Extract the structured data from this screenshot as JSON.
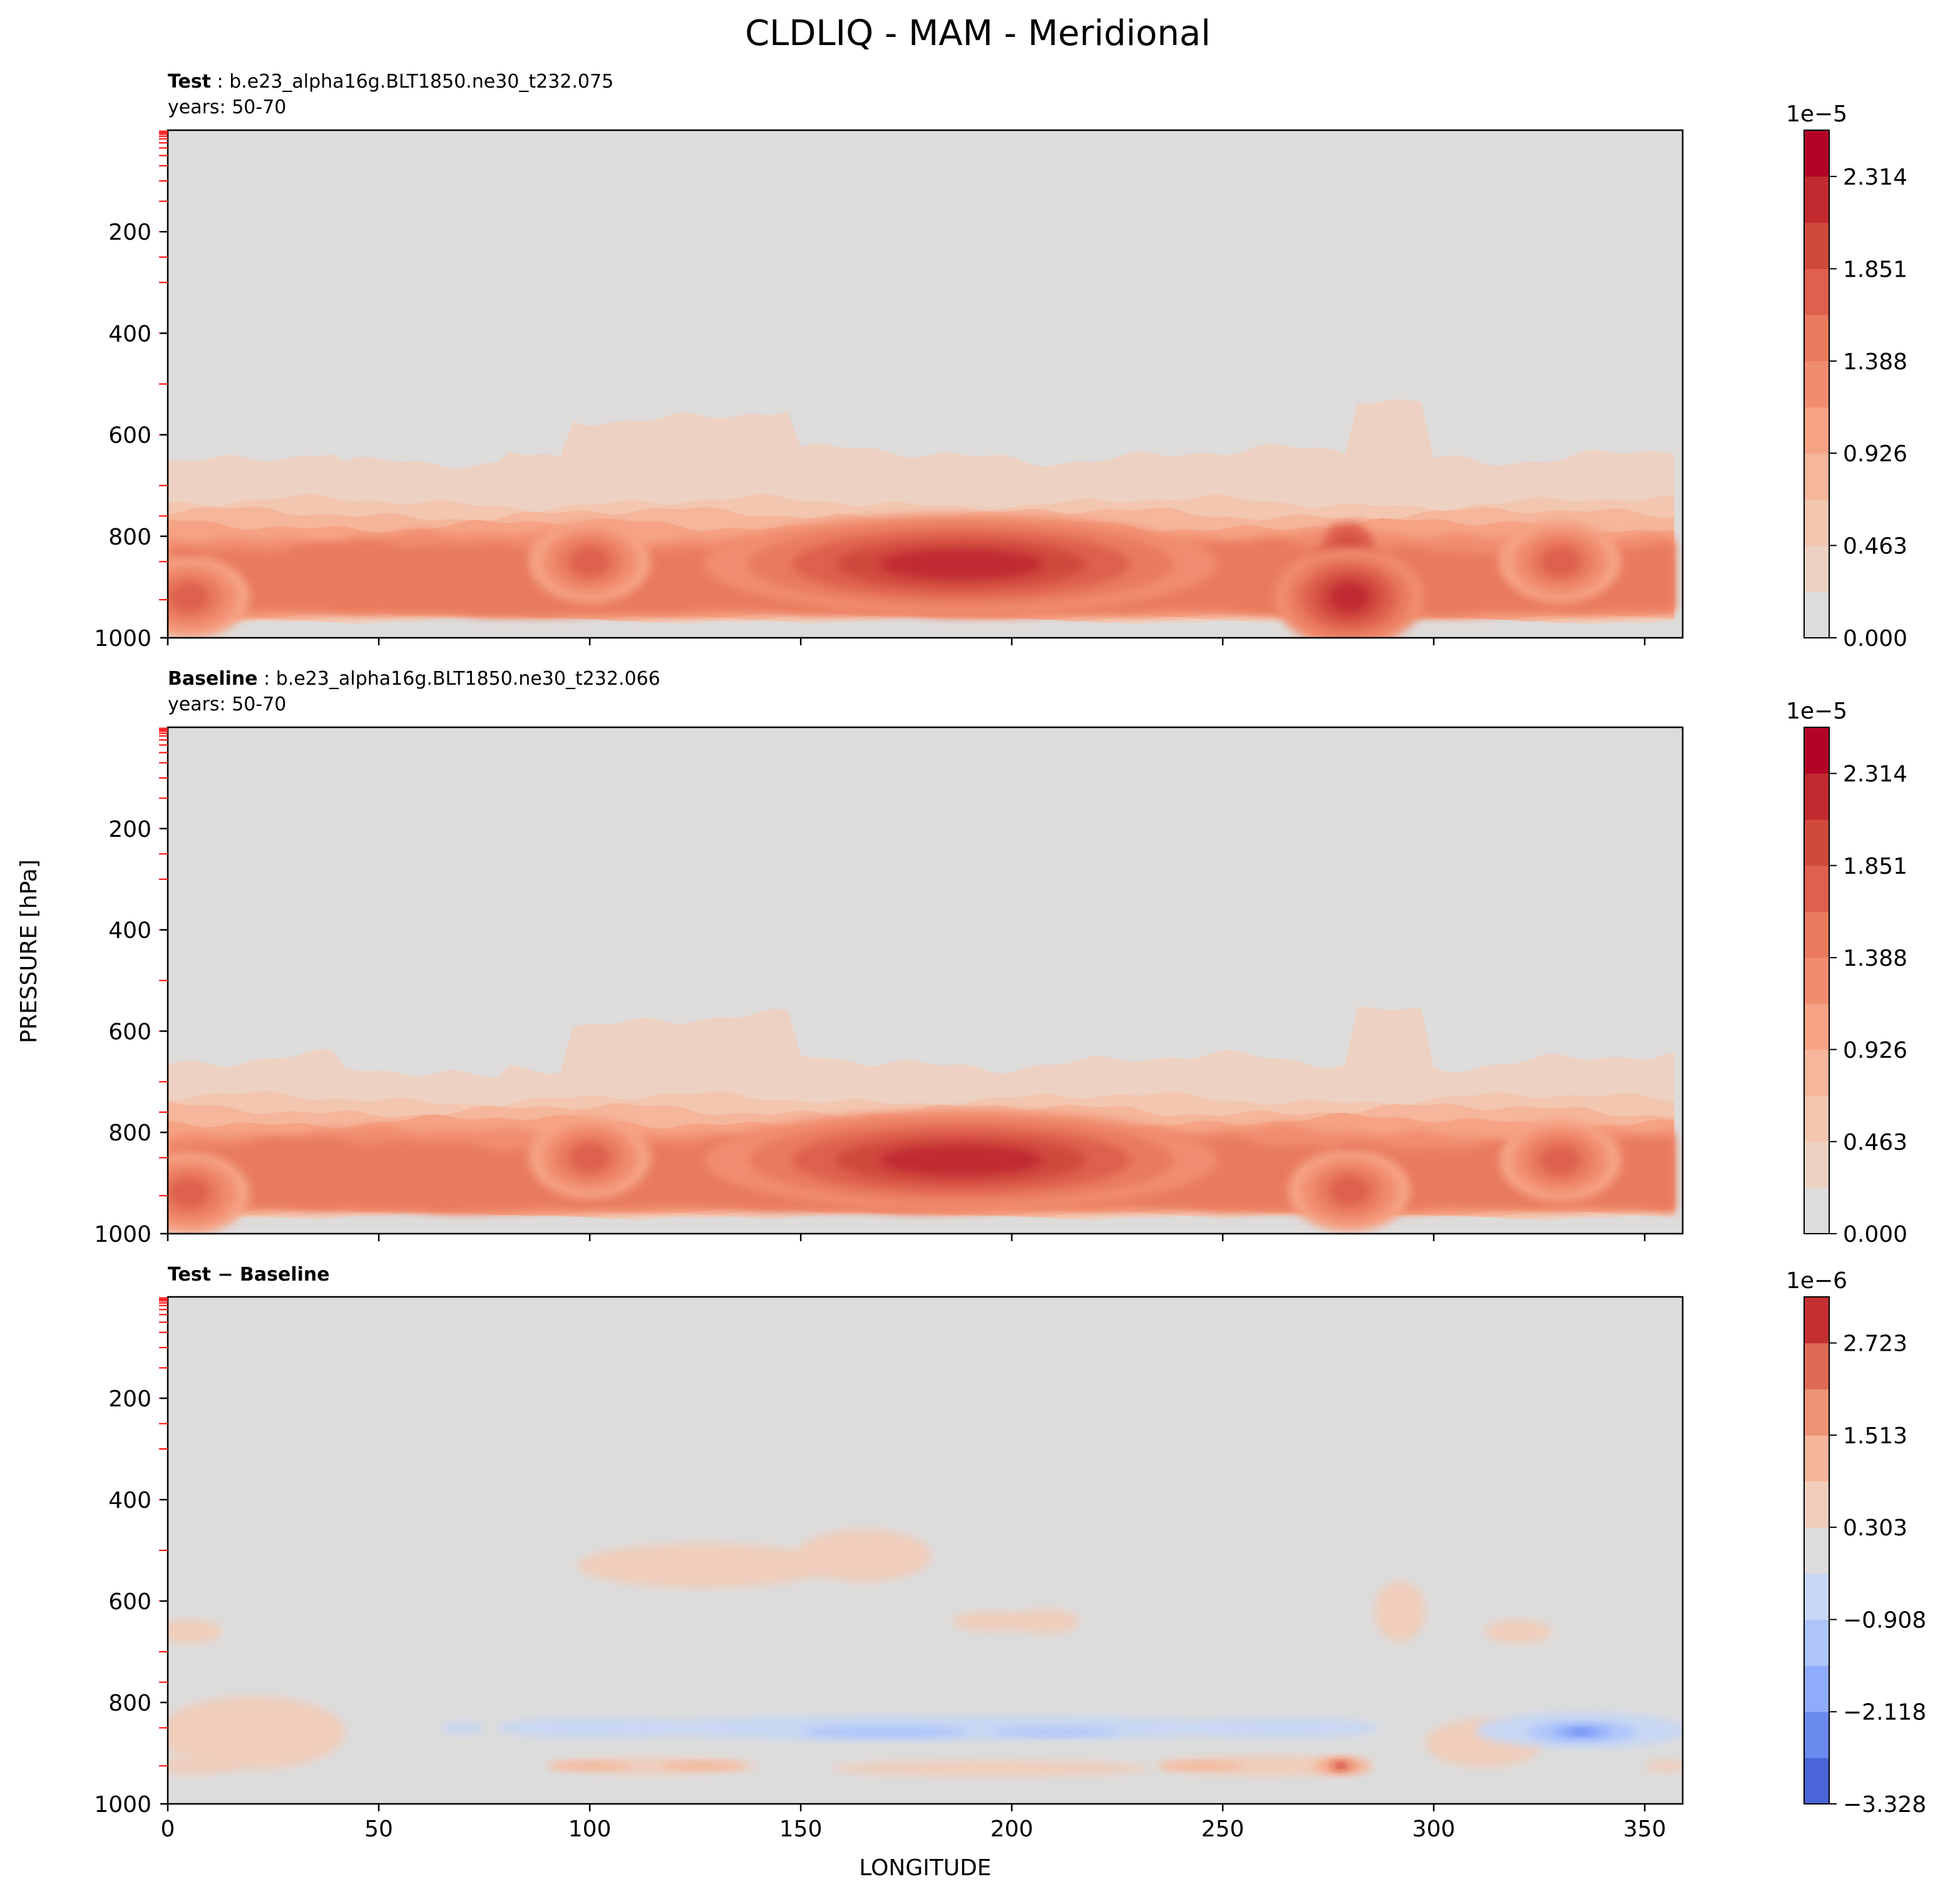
{
  "figure": {
    "title": "CLDLIQ - MAM - Meridional",
    "ylabel": "PRESSURE [hPa]",
    "xlabel": "LONGITUDE"
  },
  "chart_data": [
    {
      "type": "heatmap",
      "name": "test-panel",
      "title_bold": "Test",
      "title_rest": ": b.e23_alpha16g.BLT1850.ne30_t232.075",
      "subtitle": "years: 50-70",
      "xlim": [
        0,
        359
      ],
      "ylim": [
        1000,
        0
      ],
      "yticks": [
        "200",
        "400",
        "600",
        "800",
        "1000"
      ],
      "colorbar": {
        "exponent": "1e−5",
        "ticks": [
          "0.000",
          "0.463",
          "0.926",
          "1.388",
          "1.851",
          "2.314"
        ],
        "levels": 11,
        "vmin": 0.0,
        "vmax": 2.546,
        "colors": [
          "#dedcdb",
          "#edd1c2",
          "#f3c6b0",
          "#f5b69b",
          "#f6a385",
          "#f18d6f",
          "#e97a5d",
          "#de604d",
          "#d0493d",
          "#c12b30",
          "#b40426"
        ]
      },
      "features": [
        {
          "lon": 188,
          "p": 855,
          "value": 2.2
        },
        {
          "lon": 280,
          "p": 920,
          "value": 2.4
        },
        {
          "lon": 5,
          "p": 920,
          "value": 1.9
        },
        {
          "lon": 100,
          "p": 850,
          "value": 1.7
        },
        {
          "lon": 330,
          "p": 850,
          "value": 1.7
        }
      ]
    },
    {
      "type": "heatmap",
      "name": "baseline-panel",
      "title_bold": "Baseline",
      "title_rest": ": b.e23_alpha16g.BLT1850.ne30_t232.066",
      "subtitle": "years: 50-70",
      "xlim": [
        0,
        359
      ],
      "ylim": [
        1000,
        0
      ],
      "yticks": [
        "200",
        "400",
        "600",
        "800",
        "1000"
      ],
      "colorbar": {
        "exponent": "1e−5",
        "ticks": [
          "0.000",
          "0.463",
          "0.926",
          "1.388",
          "1.851",
          "2.314"
        ],
        "levels": 11,
        "vmin": 0.0,
        "vmax": 2.546,
        "colors": [
          "#dedcdb",
          "#edd1c2",
          "#f3c6b0",
          "#f5b69b",
          "#f6a385",
          "#f18d6f",
          "#e97a5d",
          "#de604d",
          "#d0493d",
          "#c12b30",
          "#b40426"
        ]
      },
      "features": [
        {
          "lon": 188,
          "p": 855,
          "value": 2.3
        },
        {
          "lon": 280,
          "p": 915,
          "value": 1.9
        },
        {
          "lon": 5,
          "p": 920,
          "value": 1.8
        },
        {
          "lon": 100,
          "p": 850,
          "value": 1.7
        },
        {
          "lon": 330,
          "p": 855,
          "value": 1.8
        }
      ]
    },
    {
      "type": "heatmap",
      "name": "difference-panel",
      "title_bold": "Test − Baseline",
      "title_rest": "",
      "subtitle": "",
      "xlim": [
        0,
        359
      ],
      "ylim": [
        1000,
        0
      ],
      "yticks": [
        "200",
        "400",
        "600",
        "800",
        "1000"
      ],
      "xticks": [
        "0",
        "50",
        "100",
        "150",
        "200",
        "250",
        "300",
        "350"
      ],
      "colorbar": {
        "exponent": "1e−6",
        "ticks": [
          "−3.328",
          "−2.118",
          "−0.908",
          "0.303",
          "1.513",
          "2.723"
        ],
        "levels": 11,
        "vmin": -3.328,
        "vmax": 3.328,
        "colors": [
          "#4a65d7",
          "#6b8af0",
          "#8fabfb",
          "#aec5fb",
          "#c8d7f3",
          "#dcdcdc",
          "#f0cdbb",
          "#f5b59a",
          "#ef9376",
          "#de6a55",
          "#c43032"
        ]
      },
      "features": [
        {
          "lon": 335,
          "p": 855,
          "value": -3.0
        },
        {
          "lon": 170,
          "p": 855,
          "value": -1.9
        },
        {
          "lon": 278,
          "p": 925,
          "value": 3.0
        },
        {
          "lon": 100,
          "p": 925,
          "value": 1.3
        }
      ]
    }
  ]
}
